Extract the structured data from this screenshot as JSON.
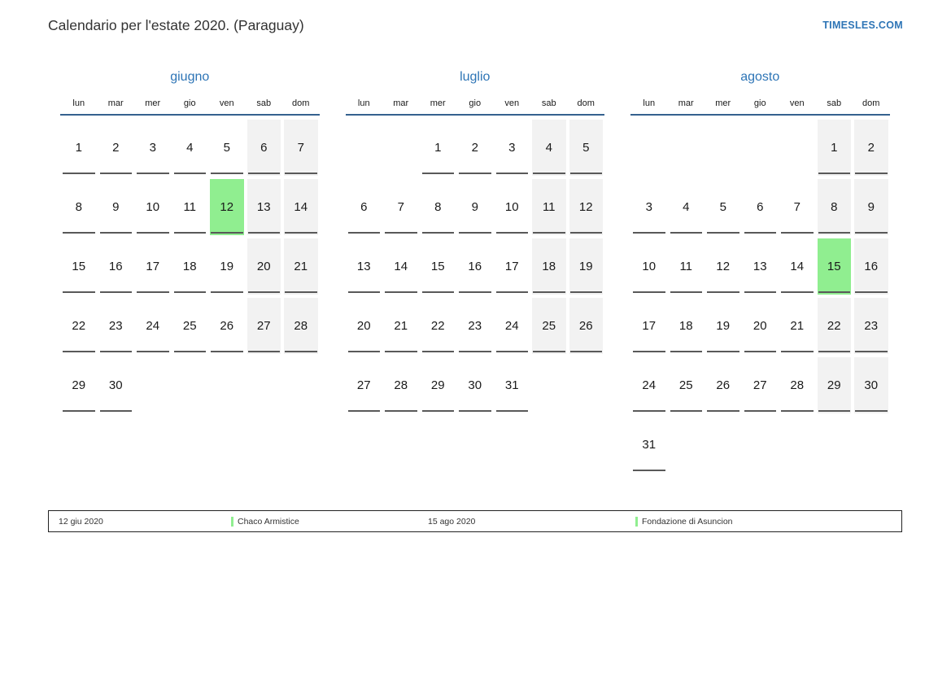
{
  "page": {
    "title": "Calendario per l'estate 2020. (Paraguay)",
    "site_link": "TIMESLES.COM"
  },
  "colors": {
    "accent_blue": "#2E75B6",
    "header_line_blue": "#35618F",
    "weekend_bg": "#F2F2F2",
    "holiday_green": "#90EE90",
    "underline_gray": "#595959"
  },
  "weekday_headers": [
    "lun",
    "mar",
    "mer",
    "gio",
    "ven",
    "sab",
    "dom"
  ],
  "months": [
    {
      "name": "giugno",
      "highlighted_day": 12,
      "weeks": [
        [
          1,
          2,
          3,
          4,
          5,
          6,
          7
        ],
        [
          8,
          9,
          10,
          11,
          12,
          13,
          14
        ],
        [
          15,
          16,
          17,
          18,
          19,
          20,
          21
        ],
        [
          22,
          23,
          24,
          25,
          26,
          27,
          28
        ],
        [
          29,
          30,
          null,
          null,
          null,
          null,
          null
        ]
      ]
    },
    {
      "name": "luglio",
      "highlighted_day": null,
      "weeks": [
        [
          null,
          null,
          1,
          2,
          3,
          4,
          5
        ],
        [
          6,
          7,
          8,
          9,
          10,
          11,
          12
        ],
        [
          13,
          14,
          15,
          16,
          17,
          18,
          19
        ],
        [
          20,
          21,
          22,
          23,
          24,
          25,
          26
        ],
        [
          27,
          28,
          29,
          30,
          31,
          null,
          null
        ]
      ]
    },
    {
      "name": "agosto",
      "highlighted_day": 15,
      "weeks": [
        [
          null,
          null,
          null,
          null,
          null,
          1,
          2
        ],
        [
          3,
          4,
          5,
          6,
          7,
          8,
          9
        ],
        [
          10,
          11,
          12,
          13,
          14,
          15,
          16
        ],
        [
          17,
          18,
          19,
          20,
          21,
          22,
          23
        ],
        [
          24,
          25,
          26,
          27,
          28,
          29,
          30
        ],
        [
          31,
          null,
          null,
          null,
          null,
          null,
          null
        ]
      ]
    }
  ],
  "legend": [
    {
      "date": "12 giu 2020",
      "holiday": "Chaco Armistice"
    },
    {
      "date": "15 ago 2020",
      "holiday": "Fondazione di Asuncion"
    }
  ]
}
